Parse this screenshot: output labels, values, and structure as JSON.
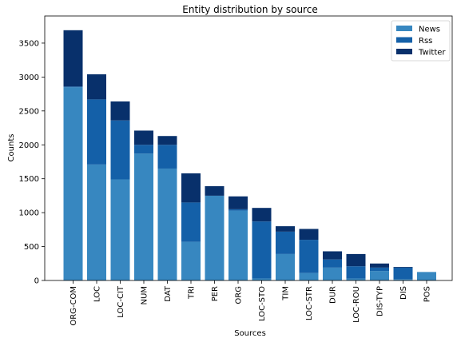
{
  "chart_data": {
    "type": "bar",
    "stacked": true,
    "title": "Entity distribution by source",
    "xlabel": "Sources",
    "ylabel": "Counts",
    "ylim": [
      0,
      3900
    ],
    "yticks": [
      0,
      500,
      1000,
      1500,
      2000,
      2500,
      3000,
      3500
    ],
    "categories": [
      "ORG-COM",
      "LOC",
      "LOC-CIT",
      "NUM",
      "DAT",
      "TRI",
      "PER",
      "ORG",
      "LOC-STO",
      "TIM",
      "LOC-STR",
      "DUR",
      "LOC-ROU",
      "DIS-TYP",
      "DIS",
      "POS"
    ],
    "series": [
      {
        "name": "News",
        "color": "#3787c0",
        "values": [
          2850,
          1710,
          1490,
          1870,
          1650,
          570,
          1250,
          1030,
          30,
          390,
          110,
          190,
          30,
          140,
          20,
          125
        ]
      },
      {
        "name": "Rss",
        "color": "#1460a8",
        "values": [
          10,
          960,
          870,
          130,
          350,
          580,
          0,
          20,
          840,
          330,
          490,
          120,
          180,
          50,
          170,
          0
        ]
      },
      {
        "name": "Twitter",
        "color": "#08306b",
        "values": [
          830,
          370,
          280,
          210,
          130,
          430,
          140,
          190,
          200,
          80,
          160,
          120,
          180,
          60,
          10,
          0
        ]
      }
    ],
    "grid": false,
    "legend_position": "top-right"
  }
}
